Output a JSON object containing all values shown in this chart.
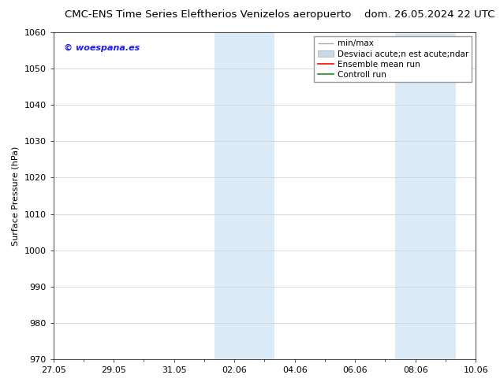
{
  "title_left": "CMC-ENS Time Series Eleftherios Venizelos aeropuerto",
  "title_right": "dom. 26.05.2024 22 UTC",
  "ylabel": "Surface Pressure (hPa)",
  "watermark": "© woespana.es",
  "watermark_color": "#1a1aff",
  "ylim": [
    970,
    1060
  ],
  "yticks": [
    970,
    980,
    990,
    1000,
    1010,
    1020,
    1030,
    1040,
    1050,
    1060
  ],
  "xtick_labels": [
    "27.05",
    "29.05",
    "31.05",
    "02.06",
    "04.06",
    "06.06",
    "08.06",
    "10.06"
  ],
  "xtick_positions": [
    0,
    2,
    4,
    6,
    8,
    10,
    12,
    14
  ],
  "x_total_days": 14,
  "background_color": "#ffffff",
  "plot_background": "#ffffff",
  "shaded_bands": [
    {
      "x_start": 5.33,
      "x_end": 7.33,
      "color": "#daeaf7"
    },
    {
      "x_start": 11.33,
      "x_end": 13.33,
      "color": "#daeaf7"
    }
  ],
  "legend_labels": [
    "min/max",
    "Desviaci acute;n est acute;ndar",
    "Ensemble mean run",
    "Controll run"
  ],
  "legend_colors": [
    "#aaaaaa",
    "#c8daea",
    "#ff0000",
    "#228b22"
  ],
  "font_size_title": 9.5,
  "font_size_axis": 8,
  "font_size_ticks": 8,
  "font_size_legend": 7.5,
  "font_size_watermark": 8
}
